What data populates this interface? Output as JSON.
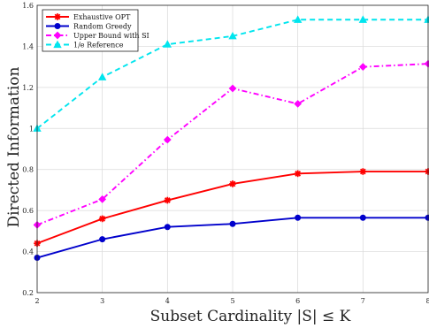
{
  "chart_data": {
    "type": "line",
    "xlabel": "Subset Cardinality |S| ≤ K",
    "ylabel": "Directed Information",
    "x": [
      2,
      3,
      4,
      5,
      6,
      7,
      8
    ],
    "xlim": [
      2,
      8
    ],
    "ylim": [
      0.2,
      1.6
    ],
    "xticks": [
      2,
      3,
      4,
      5,
      6,
      7,
      8
    ],
    "yticks": [
      0.2,
      0.4,
      0.6,
      0.8,
      1,
      1.2,
      1.4,
      1.6
    ],
    "xtick_labels": [
      "2",
      "3",
      "4",
      "5",
      "6",
      "7",
      "8"
    ],
    "ytick_labels": [
      "0.2",
      "0.4",
      "0.6",
      "0.8",
      "1",
      "1.2",
      "1.4",
      "1.6"
    ],
    "grid": true,
    "legend_position": "top-left",
    "series": [
      {
        "name": "Exhaustive OPT",
        "color": "#ff0000",
        "marker": "asterisk",
        "dash": "solid",
        "values": [
          0.44,
          0.56,
          0.65,
          0.73,
          0.78,
          0.79,
          0.79
        ]
      },
      {
        "name": "Random Greedy",
        "color": "#0000cc",
        "marker": "circle",
        "dash": "solid",
        "values": [
          0.37,
          0.46,
          0.52,
          0.535,
          0.565,
          0.565,
          0.565
        ]
      },
      {
        "name": "Upper Bound with SI",
        "color": "#ff00ff",
        "marker": "diamond",
        "dash": "dashdot",
        "values": [
          0.53,
          0.655,
          0.945,
          1.195,
          1.12,
          1.3,
          1.315
        ]
      },
      {
        "name": "1/e Reference",
        "color": "#00e5ee",
        "marker": "triangle",
        "dash": "dashed",
        "values": [
          1.0,
          1.25,
          1.41,
          1.45,
          1.53,
          1.53,
          1.53
        ]
      }
    ]
  }
}
